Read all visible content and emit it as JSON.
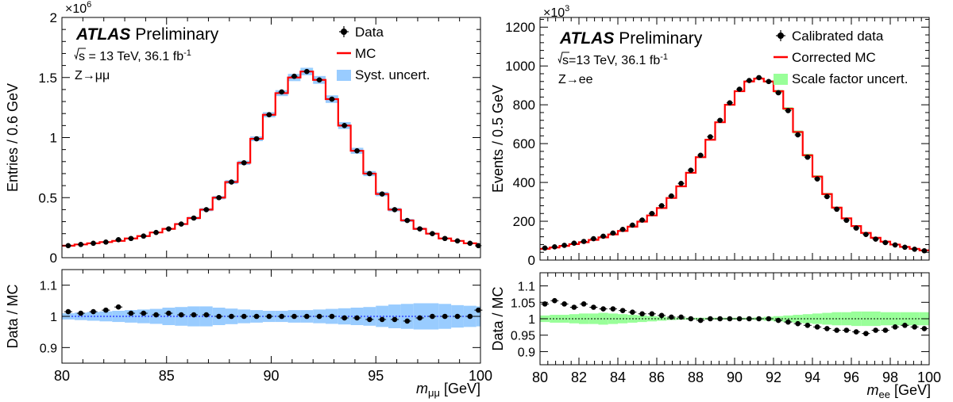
{
  "chart_data": [
    {
      "type": "line",
      "atlas": {
        "bold": "ATLAS",
        "rest": "Preliminary"
      },
      "energy_root": "s",
      "energy_text": " = 13 TeV, 36.1 fb",
      "energy_sup": "-1",
      "channel": "Z→μμ",
      "ylabel": "Entries / 0.6 GeV",
      "multiplier_base": "×10",
      "multiplier_exp": "6",
      "ylim": [
        0,
        2
      ],
      "yticks": [
        "0",
        "0.5",
        "1",
        "1.5",
        "2"
      ],
      "yticks_values": [
        0,
        0.5,
        1,
        1.5,
        2
      ],
      "xlim": [
        80,
        100
      ],
      "xticks": [
        "80",
        "85",
        "90",
        "95",
        "100"
      ],
      "xticks_values": [
        80,
        85,
        90,
        95,
        100
      ],
      "xlabel_main": "m",
      "xlabel_sub": "μμ",
      "xlabel_unit": " [GeV]",
      "ratio_ylabel": "Data / MC",
      "ratio_ylim": [
        0.85,
        1.15
      ],
      "ratio_yticks": [
        "0.9",
        "1",
        "1.1"
      ],
      "ratio_yticks_values": [
        0.9,
        1.0,
        1.1
      ],
      "legend": {
        "data": "Data",
        "mc": "MC",
        "band": "Syst. uncert."
      },
      "colors": {
        "mc": "#ff0000",
        "band": "#99ccff",
        "data": "#000000",
        "ref": "#0000ff"
      },
      "bin_edges": [
        80.0,
        80.6,
        81.2,
        81.8,
        82.4,
        83.0,
        83.6,
        84.2,
        84.8,
        85.4,
        86.0,
        86.6,
        87.2,
        87.8,
        88.4,
        89.0,
        89.6,
        90.2,
        90.8,
        91.4,
        92.0,
        92.6,
        93.2,
        93.8,
        94.4,
        95.0,
        95.6,
        96.2,
        96.8,
        97.4,
        98.0,
        98.6,
        99.2,
        99.8,
        100.0
      ],
      "mc": [
        0.1,
        0.11,
        0.12,
        0.13,
        0.14,
        0.16,
        0.18,
        0.21,
        0.24,
        0.28,
        0.33,
        0.4,
        0.5,
        0.63,
        0.79,
        0.99,
        1.19,
        1.37,
        1.5,
        1.55,
        1.48,
        1.32,
        1.1,
        0.89,
        0.7,
        0.53,
        0.4,
        0.31,
        0.24,
        0.2,
        0.16,
        0.14,
        0.12,
        0.1
      ],
      "data": [
        0.1,
        0.11,
        0.12,
        0.13,
        0.15,
        0.16,
        0.18,
        0.21,
        0.24,
        0.28,
        0.33,
        0.4,
        0.5,
        0.63,
        0.79,
        0.99,
        1.19,
        1.38,
        1.51,
        1.55,
        1.48,
        1.32,
        1.1,
        0.89,
        0.7,
        0.53,
        0.4,
        0.31,
        0.24,
        0.2,
        0.16,
        0.14,
        0.12,
        0.1
      ],
      "ratio": [
        1.015,
        1.01,
        1.015,
        1.02,
        1.03,
        1.01,
        1.01,
        1.005,
        1.01,
        1.005,
        1.005,
        1.005,
        1.0,
        1.0,
        1.0,
        1.0,
        1.0,
        1.0,
        1.0,
        1.0,
        1.0,
        1.0,
        0.995,
        0.995,
        0.99,
        0.99,
        0.99,
        0.985,
        0.995,
        1.0,
        1.0,
        1.0,
        1.0,
        1.02
      ],
      "band_halfwidth": [
        0.01,
        0.012,
        0.014,
        0.016,
        0.018,
        0.02,
        0.022,
        0.024,
        0.028,
        0.03,
        0.032,
        0.032,
        0.028,
        0.025,
        0.022,
        0.02,
        0.018,
        0.018,
        0.02,
        0.02,
        0.022,
        0.024,
        0.026,
        0.028,
        0.03,
        0.034,
        0.038,
        0.04,
        0.042,
        0.042,
        0.04,
        0.036,
        0.034,
        0.032
      ]
    },
    {
      "type": "line",
      "atlas": {
        "bold": "ATLAS",
        "rest": "Preliminary"
      },
      "energy_root": "s",
      "energy_text": "=13 TeV, 36.1 fb",
      "energy_sup": "-1",
      "channel": "Z→ee",
      "ylabel": "Events / 0.5 GeV",
      "multiplier_base": "×10",
      "multiplier_exp": "3",
      "ylim": [
        0,
        1250
      ],
      "yticks": [
        "0",
        "200",
        "400",
        "600",
        "800",
        "1000",
        "1200"
      ],
      "yticks_values": [
        0,
        200,
        400,
        600,
        800,
        1000,
        1200
      ],
      "xlim": [
        80,
        100
      ],
      "xticks": [
        "80",
        "82",
        "84",
        "86",
        "88",
        "90",
        "92",
        "94",
        "96",
        "98",
        "100"
      ],
      "xticks_values": [
        80,
        82,
        84,
        86,
        88,
        90,
        92,
        94,
        96,
        98,
        100
      ],
      "xlabel_main": "m",
      "xlabel_sub": "ee",
      "xlabel_unit": " [GeV]",
      "ratio_ylabel": "Data / MC",
      "ratio_ylim": [
        0.86,
        1.14
      ],
      "ratio_yticks": [
        "0.9",
        "0.95",
        "1",
        "1.05",
        "1.1"
      ],
      "ratio_yticks_values": [
        0.9,
        0.95,
        1.0,
        1.05,
        1.1
      ],
      "legend": {
        "data": "Calibrated data",
        "mc": "Corrected MC",
        "band": "Scale factor uncert."
      },
      "colors": {
        "mc": "#ff0000",
        "band": "#99ff99",
        "data": "#000000",
        "ref": "#000000"
      },
      "bin_edges": [
        80.0,
        80.5,
        81.0,
        81.5,
        82.0,
        82.5,
        83.0,
        83.5,
        84.0,
        84.5,
        85.0,
        85.5,
        86.0,
        86.5,
        87.0,
        87.5,
        88.0,
        88.5,
        89.0,
        89.5,
        90.0,
        90.5,
        91.0,
        91.5,
        92.0,
        92.5,
        93.0,
        93.5,
        94.0,
        94.5,
        95.0,
        95.5,
        96.0,
        96.5,
        97.0,
        97.5,
        98.0,
        98.5,
        99.0,
        99.5,
        100.0
      ],
      "mc": [
        58,
        65,
        73,
        82,
        92,
        104,
        117,
        132,
        150,
        172,
        198,
        230,
        268,
        320,
        380,
        450,
        530,
        620,
        710,
        800,
        870,
        920,
        935,
        920,
        870,
        780,
        660,
        540,
        430,
        340,
        270,
        215,
        175,
        140,
        115,
        95,
        80,
        68,
        58,
        50
      ],
      "data": [
        62,
        68,
        76,
        87,
        96,
        110,
        123,
        139,
        158,
        180,
        206,
        240,
        280,
        330,
        395,
        463,
        540,
        635,
        720,
        810,
        880,
        925,
        940,
        920,
        862,
        770,
        645,
        530,
        418,
        327,
        262,
        205,
        165,
        132,
        108,
        90,
        78,
        66,
        56,
        48
      ],
      "ratio": [
        1.045,
        1.055,
        1.045,
        1.035,
        1.045,
        1.035,
        1.03,
        1.03,
        1.025,
        1.02,
        1.015,
        1.015,
        1.01,
        1.005,
        1.005,
        1.0,
        0.995,
        1.0,
        1.0,
        1.0,
        1.0,
        1.0,
        1.0,
        1.0,
        0.995,
        0.99,
        0.985,
        0.98,
        0.975,
        0.97,
        0.965,
        0.965,
        0.96,
        0.955,
        0.965,
        0.965,
        0.975,
        0.98,
        0.975,
        0.97
      ],
      "band_halfwidth": [
        0.01,
        0.012,
        0.012,
        0.014,
        0.016,
        0.016,
        0.018,
        0.016,
        0.014,
        0.012,
        0.01,
        0.008,
        0.006,
        0.004,
        0.003,
        0.003,
        0.003,
        0.003,
        0.003,
        0.003,
        0.003,
        0.003,
        0.004,
        0.006,
        0.008,
        0.01,
        0.012,
        0.014,
        0.016,
        0.018,
        0.02,
        0.02,
        0.022,
        0.022,
        0.022,
        0.02,
        0.02,
        0.02,
        0.02,
        0.02
      ]
    }
  ]
}
